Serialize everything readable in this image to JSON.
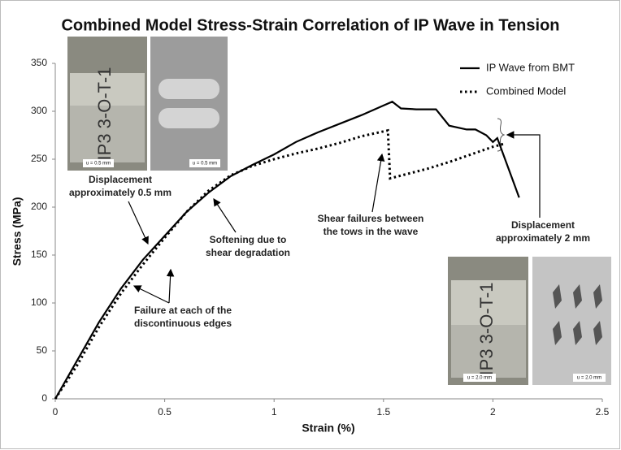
{
  "chart_data": {
    "type": "line",
    "title": "Combined Model Stress-Strain Correlation of IP Wave in Tension",
    "x_label": "Strain (%)",
    "y_label": "Stress (MPa)",
    "xlim": [
      0,
      2.5
    ],
    "xticks": [
      0,
      0.5,
      1,
      1.5,
      2,
      2.5
    ],
    "ylim": [
      0,
      350
    ],
    "yticks": [
      0,
      50,
      100,
      150,
      200,
      250,
      300,
      350
    ],
    "grid": false,
    "legend": "top-right",
    "series": [
      {
        "name": "IP Wave from BMT",
        "color": "#000000",
        "style": "solid",
        "x": [
          0,
          0.1,
          0.2,
          0.3,
          0.4,
          0.5,
          0.6,
          0.7,
          0.8,
          0.9,
          1.0,
          1.1,
          1.2,
          1.3,
          1.4,
          1.5,
          1.54,
          1.58,
          1.65,
          1.74,
          1.8,
          1.88,
          1.92,
          1.97,
          2.0,
          2.02,
          2.12
        ],
        "values": [
          0,
          40,
          80,
          115,
          145,
          170,
          195,
          215,
          232,
          244,
          255,
          268,
          278,
          287,
          296,
          306,
          310,
          303,
          302,
          302,
          285,
          281,
          281,
          275,
          268,
          272,
          210
        ]
      },
      {
        "name": "Combined Model",
        "color": "#000000",
        "style": "dotted",
        "x": [
          0,
          0.1,
          0.2,
          0.3,
          0.4,
          0.5,
          0.6,
          0.7,
          0.8,
          0.9,
          1.0,
          1.1,
          1.2,
          1.3,
          1.4,
          1.52,
          1.53,
          1.7,
          1.8,
          1.9,
          2.0,
          2.05
        ],
        "values": [
          0,
          35,
          75,
          110,
          140,
          168,
          195,
          217,
          233,
          243,
          250,
          256,
          261,
          267,
          274,
          280,
          230,
          240,
          247,
          255,
          263,
          266
        ]
      }
    ],
    "annotations": [
      {
        "lines": [
          "Displacement",
          "approximately 0.5 mm"
        ]
      },
      {
        "lines": [
          "Softening due to",
          "shear degradation"
        ]
      },
      {
        "lines": [
          "Shear failures between",
          "the tows in the wave"
        ]
      },
      {
        "lines": [
          "Displacement",
          "approximately 2 mm"
        ]
      },
      {
        "lines": [
          "Failure at each of the",
          "discontinuous edges"
        ]
      }
    ],
    "insets": [
      {
        "labels": [
          "u = 0.5 mm",
          "u = 0.5 mm"
        ],
        "specimen": "IP3 3-O-T-1"
      },
      {
        "labels": [
          "u = 2.0 mm",
          "u = 2.0 mm"
        ],
        "specimen": "IP3 3-O-T-1"
      }
    ]
  }
}
